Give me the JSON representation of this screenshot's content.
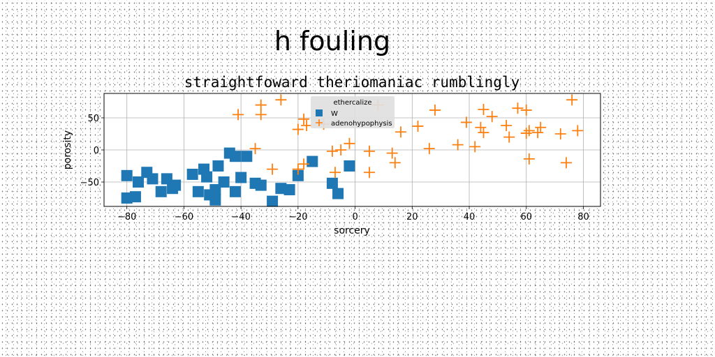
{
  "figure": {
    "suptitle": "h fouling"
  },
  "chart_data": {
    "type": "scatter",
    "title": "straightfoward theriomaniac rumblingly",
    "xlabel": "sorcery",
    "ylabel": "porosity",
    "xlim": [
      -88,
      86
    ],
    "ylim": [
      -88,
      88
    ],
    "xticks": [
      -80,
      -60,
      -40,
      -20,
      0,
      20,
      40,
      60,
      80
    ],
    "yticks": [
      -50,
      0,
      50
    ],
    "grid": true,
    "legend": {
      "title": "ethercalize",
      "placement": "top-center"
    },
    "series": [
      {
        "name": "W",
        "marker": "square",
        "color": "#1f77b4",
        "points": [
          [
            -80,
            -40
          ],
          [
            -80,
            -75
          ],
          [
            -77,
            -73
          ],
          [
            -76,
            -50
          ],
          [
            -73,
            -35
          ],
          [
            -71,
            -45
          ],
          [
            -68,
            -65
          ],
          [
            -66,
            -45
          ],
          [
            -64,
            -60
          ],
          [
            -63,
            -55
          ],
          [
            -57,
            -38
          ],
          [
            -55,
            -65
          ],
          [
            -53,
            -30
          ],
          [
            -52,
            -42
          ],
          [
            -51,
            -70
          ],
          [
            -49,
            -78
          ],
          [
            -49,
            -62
          ],
          [
            -48,
            -25
          ],
          [
            -46,
            -50
          ],
          [
            -44,
            -5
          ],
          [
            -42,
            -10
          ],
          [
            -42,
            -65
          ],
          [
            -40,
            -43
          ],
          [
            -38,
            -10
          ],
          [
            -35,
            -52
          ],
          [
            -33,
            -55
          ],
          [
            -29,
            -80
          ],
          [
            -26,
            -60
          ],
          [
            -23,
            -62
          ],
          [
            -20,
            -40
          ],
          [
            -15,
            -18
          ],
          [
            -8,
            -52
          ],
          [
            -6,
            -68
          ],
          [
            -2,
            -25
          ]
        ]
      },
      {
        "name": "adenohypophysis",
        "marker": "plus",
        "color": "#ff7f0e",
        "points": [
          [
            -41,
            55
          ],
          [
            -33,
            70
          ],
          [
            -33,
            55
          ],
          [
            -26,
            78
          ],
          [
            -35,
            2
          ],
          [
            -29,
            -30
          ],
          [
            -20,
            -30
          ],
          [
            -20,
            32
          ],
          [
            -18,
            48
          ],
          [
            -17,
            38
          ],
          [
            -18,
            -22
          ],
          [
            -11,
            40
          ],
          [
            -8,
            -2
          ],
          [
            -7,
            -35
          ],
          [
            -5,
            0
          ],
          [
            -2,
            10
          ],
          [
            5,
            -35
          ],
          [
            5,
            -2
          ],
          [
            8,
            70
          ],
          [
            13,
            -5
          ],
          [
            14,
            -20
          ],
          [
            16,
            28
          ],
          [
            22,
            37
          ],
          [
            26,
            2
          ],
          [
            28,
            62
          ],
          [
            36,
            8
          ],
          [
            39,
            43
          ],
          [
            42,
            5
          ],
          [
            44,
            35
          ],
          [
            45,
            27
          ],
          [
            45,
            63
          ],
          [
            48,
            52
          ],
          [
            53,
            38
          ],
          [
            54,
            20
          ],
          [
            57,
            65
          ],
          [
            60,
            62
          ],
          [
            60,
            26
          ],
          [
            61,
            -14
          ],
          [
            61,
            30
          ],
          [
            64,
            27
          ],
          [
            65,
            35
          ],
          [
            72,
            25
          ],
          [
            74,
            -20
          ],
          [
            76,
            78
          ],
          [
            78,
            30
          ]
        ]
      }
    ]
  }
}
